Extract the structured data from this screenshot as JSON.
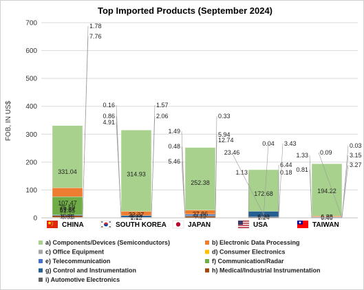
{
  "chart_data": {
    "type": "bar",
    "stacked": true,
    "title": "Top Imported Products (September 2024)",
    "ylabel": "FOB, IN US$",
    "ylim": [
      0,
      700
    ],
    "yticks": [
      0,
      100,
      200,
      300,
      400,
      500,
      600,
      700
    ],
    "grid": true,
    "legend_position": "bottom",
    "categories": [
      "CHINA",
      "SOUTH KOREA",
      "JAPAN",
      "USA",
      "TAIWAN"
    ],
    "category_icons": [
      "china-flag-icon",
      "south-korea-flag-icon",
      "japan-flag-icon",
      "usa-flag-icon",
      "taiwan-flag-icon"
    ],
    "series": [
      {
        "name": "a) Components/Devices (Semiconductors)",
        "color": "#a9d18e",
        "values": [
          331.04,
          314.93,
          252.38,
          172.68,
          194.22
        ],
        "labels": [
          "331.04",
          "314.93",
          "252.38",
          "172.68",
          "194.22"
        ]
      },
      {
        "name": "b) Electronic Data Processing",
        "color": "#ed7d31",
        "values": [
          107.47,
          23.37,
          27.86,
          6.9,
          6.88
        ],
        "labels": [
          "107.47",
          "23.37",
          "27.86",
          "6.90",
          "6.88"
        ]
      },
      {
        "name": "c) Office Equipment",
        "color": "#a5a5a5",
        "values": [
          6.81,
          4.91,
          5.46,
          0.18,
          0.81
        ],
        "labels": [
          "6.81",
          "4.91",
          "5.46",
          "0.18",
          "0.81"
        ]
      },
      {
        "name": "d) Consumer Electronics",
        "color": "#ffc000",
        "values": [
          51.65,
          0.86,
          0.48,
          1.13,
          0.4
        ],
        "labels": [
          "51.65",
          "0.86",
          "0.48",
          "1.13",
          "0.40"
        ]
      },
      {
        "name": "e) Telecommunication",
        "color": "#4472c4",
        "values": [
          59.67,
          2.06,
          12.74,
          6.44,
          3.27
        ],
        "labels": [
          "59.67",
          "2.06",
          "12.74",
          "6.44",
          "3.27"
        ]
      },
      {
        "name": "f) Communication/Radar",
        "color": "#70ad47",
        "values": [
          75.59,
          0.16,
          1.49,
          1.24,
          0.03
        ],
        "labels": [
          "75.59",
          "0.16",
          "1.49",
          "1.24",
          "0.03"
        ]
      },
      {
        "name": "g) Control and Instrumentation",
        "color": "#255e91",
        "values": [
          10.81,
          8.24,
          9.12,
          23.46,
          3.15
        ],
        "labels": [
          "10.81",
          "8.24",
          "9.12",
          "23.46",
          "3.15"
        ]
      },
      {
        "name": "h) Medical/Industrial Instrumentation",
        "color": "#9e480e",
        "values": [
          7.76,
          1.57,
          5.94,
          0.04,
          1.33
        ],
        "labels": [
          "7.76",
          "1.57",
          "5.94",
          "0.04",
          "1.33"
        ]
      },
      {
        "name": "i) Automotive Electronics",
        "color": "#636363",
        "values": [
          1.78,
          1.12,
          0.33,
          3.43,
          0.09
        ],
        "labels": [
          "1.78",
          "1.12",
          "0.33",
          "3.43",
          "0.09"
        ]
      }
    ]
  }
}
